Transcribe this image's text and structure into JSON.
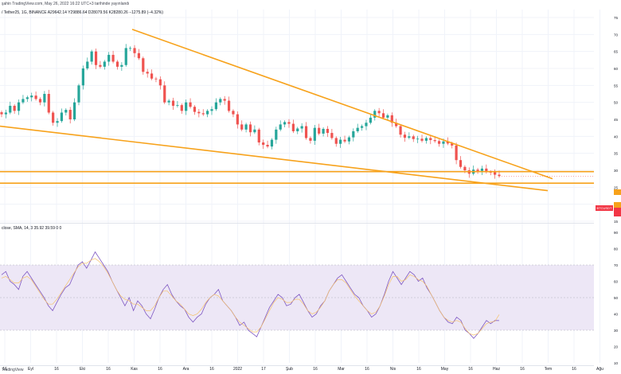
{
  "header": {
    "top_line": "şahin TradingView.com, May 26, 2022 16:22 UTC+3 tarihinde yayınlandı",
    "symbol_line": "/ Tether25, 1G, BINANCE  A29642.14  Y29886.64  D28079.56  K28280.26  −1275.89 (−4.32%)",
    "rsi_line": "close, SMA, 14, 3  35.92  39.59  0  0",
    "brand": "TradingView"
  },
  "colors": {
    "candle_up": "#26a69a",
    "candle_down": "#ef5350",
    "trendline": "#f7a21b",
    "rsi_line": "#7e57c2",
    "rsi_ma": "#f5c26b",
    "rsi_band": "#ede7f6",
    "price_tag": "#f23645",
    "ticker_tag": "#f23645"
  },
  "price_tag": {
    "label": "BTCUSDT"
  },
  "chart_data": [
    {
      "type": "candlestick",
      "title": "",
      "x_ticks": [
        "16",
        "Eyl",
        "16",
        "Eki",
        "16",
        "Kas",
        "16",
        "Ara",
        "16",
        "2022",
        "17",
        "Şub",
        "16",
        "Mar",
        "16",
        "Nis",
        "16",
        "May",
        "16",
        "Haz",
        "16",
        "Tem",
        "16",
        "Ağu"
      ],
      "y_ticks": [
        "75",
        "70",
        "65",
        "60",
        "55",
        "50",
        "45",
        "40",
        "35",
        "30",
        "25",
        "20",
        "15"
      ],
      "close_path": [
        46.5,
        47,
        49,
        47.5,
        50,
        51,
        51.5,
        52,
        51,
        50,
        52.5,
        47,
        44,
        44.5,
        47,
        47.8,
        45,
        50,
        55,
        60,
        62,
        65,
        61,
        60.5,
        62,
        64,
        62,
        60.5,
        61,
        66,
        66,
        64.5,
        63,
        59,
        58.5,
        57,
        56.8,
        55,
        50,
        50.5,
        49,
        49.2,
        47.5,
        50,
        48.7,
        47.2,
        46.8,
        46.5,
        47.5,
        48,
        50,
        51,
        50.5,
        47.5,
        46.5,
        43.5,
        42,
        43.5,
        41.2,
        42,
        38.2,
        37.5,
        37,
        39,
        42,
        43.5,
        44.2,
        43.7,
        41.5,
        42.3,
        43,
        39.5,
        38.7,
        42.5,
        40.8,
        42.2,
        41,
        39.5,
        37.8,
        39,
        38.5,
        39.7,
        41.5,
        42.5,
        43,
        44,
        45.5,
        47.5,
        46.8,
        45.5,
        46.2,
        44,
        43,
        40.5,
        39.6,
        40,
        39.2,
        39.3,
        38.7,
        39.5,
        38.9,
        38.6,
        37.8,
        38.5,
        37.9,
        37.3,
        33,
        31,
        30,
        29,
        30.2,
        29.8,
        30.5,
        29.5,
        29.4,
        28.7,
        28.3
      ],
      "trendlines": [
        {
          "from": [
            "Kas",
            71.5
          ],
          "to": [
            "Haz",
            27.5
          ]
        },
        {
          "from": [
            "Ağu",
            43
          ],
          "to": [
            "Haz",
            24
          ]
        }
      ],
      "horizontal_levels": [
        29.6,
        26.2
      ],
      "last_close": 28.3
    },
    {
      "type": "line",
      "title": "",
      "y_ticks": [
        "90",
        "80",
        "70",
        "60",
        "50",
        "40",
        "30",
        "20",
        "10"
      ],
      "band": [
        30,
        70
      ],
      "levels": [
        30,
        50,
        70
      ],
      "series": [
        {
          "values": [
            64,
            66,
            60,
            58,
            55,
            63,
            66,
            62,
            58,
            54,
            50,
            45,
            42,
            47,
            52,
            56,
            58,
            64,
            70,
            72,
            68,
            73,
            78,
            74,
            70,
            66,
            60,
            55,
            50,
            45,
            50,
            42,
            48,
            45,
            40,
            37,
            43,
            50,
            55,
            58,
            52,
            48,
            45,
            43,
            38,
            35,
            38,
            40,
            46,
            50,
            52,
            55,
            48,
            45,
            42,
            38,
            33,
            35,
            30,
            28,
            26,
            32,
            38,
            44,
            48,
            52,
            50,
            45,
            46,
            50,
            52,
            47,
            42,
            38,
            40,
            45,
            48,
            54,
            58,
            62,
            64,
            60,
            56,
            52,
            50,
            45,
            42,
            38,
            40,
            45,
            52,
            60,
            66,
            62,
            58,
            62,
            66,
            64,
            60,
            62,
            56,
            52,
            47,
            42,
            38,
            35,
            34,
            38,
            36,
            30,
            28,
            25,
            28,
            32,
            36,
            34,
            36,
            35.9
          ]
        },
        {
          "values": [
            62,
            63,
            61,
            59,
            59,
            62,
            63,
            61,
            57,
            53,
            49,
            46,
            46,
            49,
            53,
            57,
            61,
            65,
            69,
            71,
            71,
            73,
            74,
            72,
            69,
            65,
            60,
            55,
            51,
            49,
            48,
            46,
            46,
            44,
            42,
            42,
            45,
            50,
            54,
            54,
            51,
            48,
            46,
            43,
            40,
            39,
            40,
            43,
            47,
            50,
            52,
            51,
            48,
            45,
            42,
            38,
            35,
            33,
            31,
            29,
            29,
            32,
            37,
            42,
            47,
            50,
            49,
            47,
            47,
            49,
            49,
            46,
            42,
            40,
            41,
            44,
            48,
            54,
            58,
            61,
            61,
            59,
            55,
            51,
            48,
            45,
            42,
            40,
            41,
            45,
            51,
            58,
            63,
            63,
            60,
            61,
            64,
            63,
            61,
            60,
            57,
            52,
            47,
            42,
            38,
            36,
            35,
            36,
            35,
            31,
            28,
            27,
            28,
            31,
            34,
            35,
            35.5,
            39.6
          ]
        }
      ]
    }
  ]
}
